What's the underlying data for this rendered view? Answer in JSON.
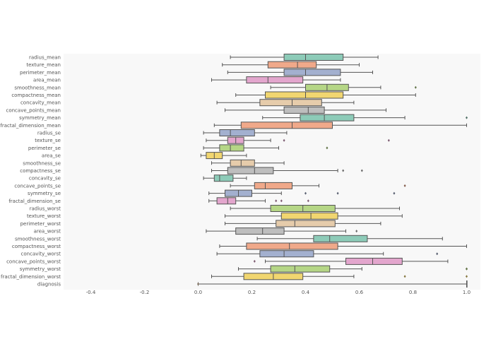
{
  "chart_data": {
    "type": "box",
    "orientation": "horizontal",
    "grid": false,
    "xlim": [
      -0.5,
      1.0
    ],
    "xticks": [
      "-0.4",
      "-0.2",
      "0.0",
      "0.2",
      "0.4",
      "0.6",
      "0.8",
      "1.0"
    ],
    "xtick_values": [
      -0.4,
      -0.2,
      0.0,
      0.2,
      0.4,
      0.6,
      0.8,
      1.0
    ],
    "palette": [
      "#8dcbb8",
      "#f0a98a",
      "#a3b0cf",
      "#e3a6cd",
      "#b5d686",
      "#f1d670",
      "#e6ccab",
      "#bebebe"
    ],
    "series": [
      {
        "name": "radius_mean",
        "min": 0.12,
        "q1": 0.32,
        "median": 0.4,
        "q3": 0.54,
        "max": 0.67,
        "outliers": []
      },
      {
        "name": "texture_mean",
        "min": 0.09,
        "q1": 0.26,
        "median": 0.37,
        "q3": 0.44,
        "max": 0.6,
        "outliers": []
      },
      {
        "name": "perimeter_mean",
        "min": 0.11,
        "q1": 0.32,
        "median": 0.4,
        "q3": 0.53,
        "max": 0.65,
        "outliers": []
      },
      {
        "name": "area_mean",
        "min": 0.05,
        "q1": 0.18,
        "median": 0.26,
        "q3": 0.39,
        "max": 0.53,
        "outliers": []
      },
      {
        "name": "smoothness_mean",
        "min": 0.27,
        "q1": 0.4,
        "median": 0.48,
        "q3": 0.56,
        "max": 0.68,
        "outliers": [
          0.81
        ]
      },
      {
        "name": "compactness_mean",
        "min": 0.14,
        "q1": 0.25,
        "median": 0.4,
        "q3": 0.54,
        "max": 0.81,
        "outliers": []
      },
      {
        "name": "concavity_mean",
        "min": 0.07,
        "q1": 0.23,
        "median": 0.35,
        "q3": 0.46,
        "max": 0.58,
        "outliers": []
      },
      {
        "name": "concave_points_mean",
        "min": 0.1,
        "q1": 0.32,
        "median": 0.41,
        "q3": 0.47,
        "max": 0.7,
        "outliers": []
      },
      {
        "name": "symmetry_mean",
        "min": 0.24,
        "q1": 0.38,
        "median": 0.47,
        "q3": 0.58,
        "max": 0.77,
        "outliers": [
          1.0
        ]
      },
      {
        "name": "fractal_dimension_mean",
        "min": 0.06,
        "q1": 0.16,
        "median": 0.35,
        "q3": 0.5,
        "max": 1.0,
        "outliers": []
      },
      {
        "name": "radius_se",
        "min": 0.02,
        "q1": 0.08,
        "median": 0.12,
        "q3": 0.21,
        "max": 0.33,
        "outliers": []
      },
      {
        "name": "texture_se",
        "min": 0.03,
        "q1": 0.11,
        "median": 0.14,
        "q3": 0.17,
        "max": 0.27,
        "outliers": [
          0.32,
          0.71
        ]
      },
      {
        "name": "perimeter_se",
        "min": 0.02,
        "q1": 0.08,
        "median": 0.12,
        "q3": 0.17,
        "max": 0.3,
        "outliers": [
          0.48
        ]
      },
      {
        "name": "area_se",
        "min": 0.01,
        "q1": 0.03,
        "median": 0.06,
        "q3": 0.09,
        "max": 0.18,
        "outliers": []
      },
      {
        "name": "smoothness_se",
        "min": 0.05,
        "q1": 0.12,
        "median": 0.16,
        "q3": 0.21,
        "max": 0.32,
        "outliers": []
      },
      {
        "name": "compactness_se",
        "min": 0.05,
        "q1": 0.11,
        "median": 0.21,
        "q3": 0.28,
        "max": 0.52,
        "outliers": [
          0.54,
          0.61
        ]
      },
      {
        "name": "concavity_se",
        "min": 0.02,
        "q1": 0.06,
        "median": 0.08,
        "q3": 0.13,
        "max": 0.18,
        "outliers": []
      },
      {
        "name": "concave_points_se",
        "min": 0.12,
        "q1": 0.21,
        "median": 0.25,
        "q3": 0.35,
        "max": 0.45,
        "outliers": [
          0.77
        ]
      },
      {
        "name": "symmetry_se",
        "min": 0.04,
        "q1": 0.1,
        "median": 0.15,
        "q3": 0.2,
        "max": 0.31,
        "outliers": [
          0.4,
          0.52,
          0.73
        ]
      },
      {
        "name": "fractal_dimension_se",
        "min": 0.04,
        "q1": 0.07,
        "median": 0.11,
        "q3": 0.14,
        "max": 0.25,
        "outliers": [
          0.29,
          0.31,
          0.41
        ]
      },
      {
        "name": "radius_worst",
        "min": 0.12,
        "q1": 0.27,
        "median": 0.39,
        "q3": 0.51,
        "max": 0.75,
        "outliers": []
      },
      {
        "name": "texture_worst",
        "min": 0.1,
        "q1": 0.31,
        "median": 0.42,
        "q3": 0.52,
        "max": 0.76,
        "outliers": []
      },
      {
        "name": "perimeter_worst",
        "min": 0.1,
        "q1": 0.29,
        "median": 0.36,
        "q3": 0.51,
        "max": 0.68,
        "outliers": []
      },
      {
        "name": "area_worst",
        "min": 0.03,
        "q1": 0.14,
        "median": 0.24,
        "q3": 0.32,
        "max": 0.55,
        "outliers": [
          0.59
        ]
      },
      {
        "name": "smoothness_worst",
        "min": 0.22,
        "q1": 0.43,
        "median": 0.49,
        "q3": 0.63,
        "max": 0.91,
        "outliers": []
      },
      {
        "name": "compactness_worst",
        "min": 0.08,
        "q1": 0.18,
        "median": 0.34,
        "q3": 0.52,
        "max": 1.0,
        "outliers": []
      },
      {
        "name": "concavity_worst",
        "min": 0.07,
        "q1": 0.23,
        "median": 0.32,
        "q3": 0.43,
        "max": 0.69,
        "outliers": [
          0.89
        ]
      },
      {
        "name": "concave_points_worst",
        "min": 0.25,
        "q1": 0.55,
        "median": 0.65,
        "q3": 0.76,
        "max": 0.93,
        "outliers": [
          0.21
        ]
      },
      {
        "name": "symmetry_worst",
        "min": 0.15,
        "q1": 0.27,
        "median": 0.36,
        "q3": 0.49,
        "max": 0.61,
        "outliers": [
          1.0,
          1.0
        ]
      },
      {
        "name": "fractal_dimension_worst",
        "min": 0.05,
        "q1": 0.17,
        "median": 0.28,
        "q3": 0.39,
        "max": 0.58,
        "outliers": [
          0.77,
          1.0
        ]
      },
      {
        "name": "diagnosis",
        "min": 0.0,
        "q1": 1.0,
        "median": 1.0,
        "q3": 1.0,
        "max": 1.0,
        "outliers": [
          0.0
        ]
      }
    ]
  }
}
